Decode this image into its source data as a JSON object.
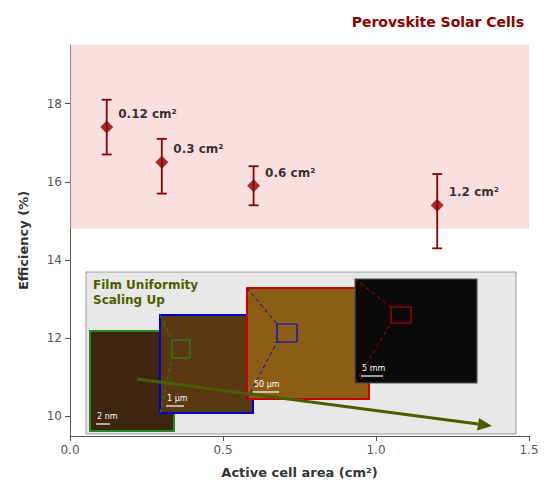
{
  "chart_data": {
    "type": "scatter",
    "title": "Perovskite Solar Cells",
    "x_label": "Active cell area (cm²)",
    "y_label": "Efficiency (%)",
    "x": [
      0.12,
      0.3,
      0.6,
      1.2
    ],
    "values": [
      17.4,
      16.5,
      15.9,
      15.4
    ],
    "error_upper": [
      0.7,
      0.6,
      0.5,
      0.8
    ],
    "error_lower": [
      0.7,
      0.8,
      0.5,
      1.1
    ],
    "point_labels": [
      "0.12 cm²",
      "0.3 cm²",
      "0.6 cm²",
      "1.2 cm²"
    ],
    "color": "#8B0000",
    "marker": "diamond",
    "xlim": [
      0.0,
      1.5
    ],
    "xticks": [
      {
        "value": 0,
        "label": "0.0"
      },
      0.5,
      {
        "value": 1,
        "label": "1.0"
      },
      1.5
    ],
    "ylim": [
      9.5,
      19.5
    ],
    "yticks": [
      10,
      12,
      14,
      16,
      18
    ],
    "grid": false,
    "band": {
      "from": 14.8,
      "to": 19.5,
      "color": "#f2b8b8"
    },
    "inset": {
      "text": "Film Uniformity\nScaling Up",
      "color": "#4a5e00",
      "images": [
        {
          "label": "2 nm",
          "color": "#3d2510",
          "edge": "#228B22"
        },
        {
          "label": "1 μm",
          "color": "#5a3810",
          "edge": "#0000cc"
        },
        {
          "label": "50 μm",
          "color": "#8b5e15",
          "edge": "#cc0000"
        },
        {
          "label": "5 mm",
          "color": "#0a0a0a",
          "edge": "#555555"
        }
      ]
    }
  }
}
